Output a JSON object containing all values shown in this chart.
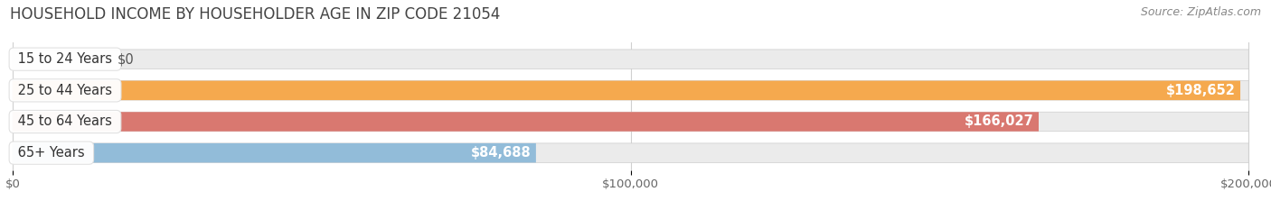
{
  "title": "HOUSEHOLD INCOME BY HOUSEHOLDER AGE IN ZIP CODE 21054",
  "source": "Source: ZipAtlas.com",
  "categories": [
    "15 to 24 Years",
    "25 to 44 Years",
    "45 to 64 Years",
    "65+ Years"
  ],
  "values": [
    0,
    198652,
    166027,
    84688
  ],
  "bar_colors": [
    "#f4a7b5",
    "#f5a94e",
    "#d97870",
    "#92bcd9"
  ],
  "bar_bg_color": "#ebebeb",
  "value_labels": [
    "$0",
    "$198,652",
    "$166,027",
    "$84,688"
  ],
  "x_tick_labels": [
    "$0",
    "$100,000",
    "$200,000"
  ],
  "x_tick_values": [
    0,
    100000,
    200000
  ],
  "xlim": [
    0,
    200000
  ],
  "title_fontsize": 12,
  "label_fontsize": 10.5,
  "tick_fontsize": 9.5,
  "source_fontsize": 9,
  "bar_height": 0.62,
  "background_color": "#ffffff"
}
